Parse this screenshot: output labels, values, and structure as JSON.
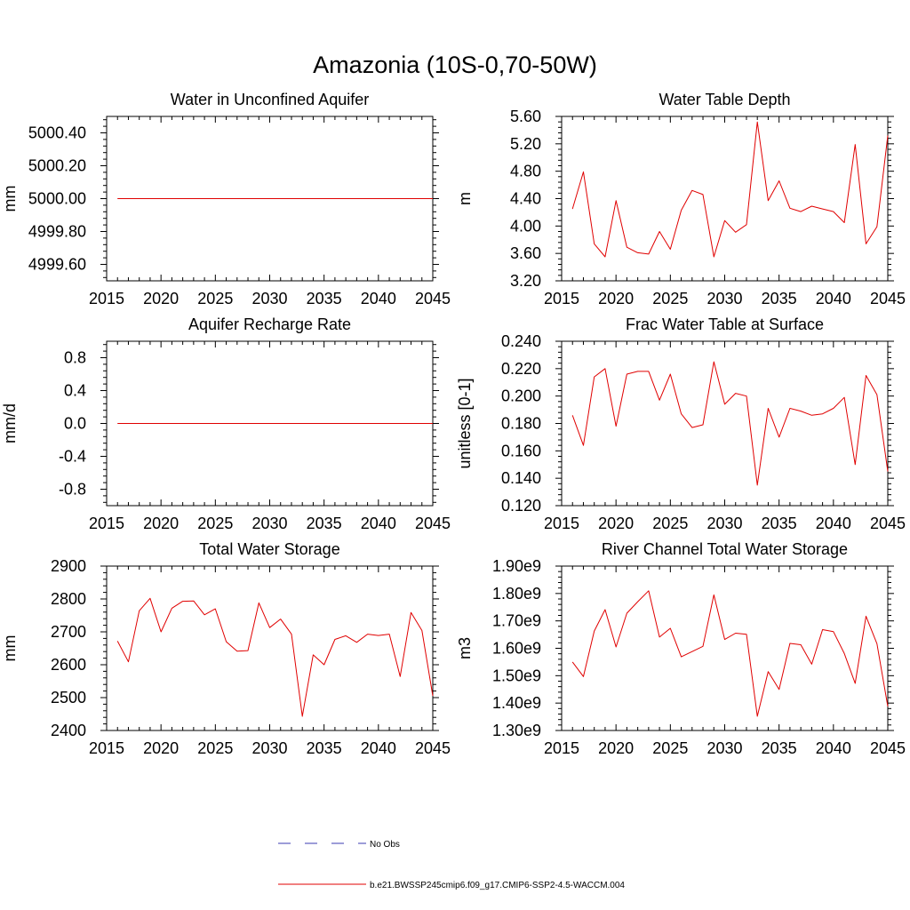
{
  "figure": {
    "title": "Amazonia (10S-0,70-50W)"
  },
  "legend": {
    "items": [
      {
        "label": "No Obs",
        "color": "#3b3bb0",
        "style": "dashed"
      },
      {
        "label": "b.e21.BWSSP245cmip6.f09_g17.CMIP6-SSP2-4.5-WACCM.004",
        "color": "#e00000",
        "style": "solid"
      }
    ]
  },
  "chart_data": [
    {
      "type": "line",
      "title": "Water in Unconfined Aquifer",
      "ylabel": "mm",
      "xlim": [
        2015,
        2045
      ],
      "ylim": [
        4999.5,
        5000.5
      ],
      "x_ticks": [
        2015,
        2020,
        2025,
        2030,
        2035,
        2040,
        2045
      ],
      "y_ticks": [
        4999.6,
        4999.8,
        5000.0,
        5000.2,
        5000.4
      ],
      "y_tick_labels": [
        "4999.60",
        "4999.80",
        "5000.00",
        "5000.20",
        "5000.40"
      ],
      "x": [
        2016,
        2017,
        2018,
        2019,
        2020,
        2021,
        2022,
        2023,
        2024,
        2025,
        2026,
        2027,
        2028,
        2029,
        2030,
        2031,
        2032,
        2033,
        2034,
        2035,
        2036,
        2037,
        2038,
        2039,
        2040,
        2041,
        2042,
        2043,
        2044,
        2045
      ],
      "series": [
        {
          "values": [
            5000,
            5000,
            5000,
            5000,
            5000,
            5000,
            5000,
            5000,
            5000,
            5000,
            5000,
            5000,
            5000,
            5000,
            5000,
            5000,
            5000,
            5000,
            5000,
            5000,
            5000,
            5000,
            5000,
            5000,
            5000,
            5000,
            5000,
            5000,
            5000,
            5000
          ],
          "color": "#e00000"
        }
      ]
    },
    {
      "type": "line",
      "title": "Water Table Depth",
      "ylabel": "m",
      "xlim": [
        2015,
        2045
      ],
      "ylim": [
        3.2,
        5.6
      ],
      "x_ticks": [
        2015,
        2020,
        2025,
        2030,
        2035,
        2040,
        2045
      ],
      "y_ticks": [
        3.2,
        3.6,
        4.0,
        4.4,
        4.8,
        5.2,
        5.6
      ],
      "y_tick_labels": [
        "3.20",
        "3.60",
        "4.00",
        "4.40",
        "4.80",
        "5.20",
        "5.60"
      ],
      "x": [
        2016,
        2017,
        2018,
        2019,
        2020,
        2021,
        2022,
        2023,
        2024,
        2025,
        2026,
        2027,
        2028,
        2029,
        2030,
        2031,
        2032,
        2033,
        2034,
        2035,
        2036,
        2037,
        2038,
        2039,
        2040,
        2041,
        2042,
        2043,
        2044,
        2045
      ],
      "series": [
        {
          "values": [
            4.25,
            4.79,
            3.74,
            3.55,
            4.37,
            3.69,
            3.61,
            3.59,
            3.92,
            3.66,
            4.23,
            4.52,
            4.46,
            3.55,
            4.08,
            3.91,
            4.02,
            5.52,
            4.37,
            4.66,
            4.26,
            4.21,
            4.29,
            4.25,
            4.21,
            4.05,
            5.19,
            3.74,
            3.99,
            5.32
          ],
          "color": "#e00000"
        }
      ]
    },
    {
      "type": "line",
      "title": "Aquifer Recharge Rate",
      "ylabel": "mm/d",
      "xlim": [
        2015,
        2045
      ],
      "ylim": [
        -1.0,
        1.0
      ],
      "x_ticks": [
        2015,
        2020,
        2025,
        2030,
        2035,
        2040,
        2045
      ],
      "y_ticks": [
        -0.8,
        -0.4,
        0.0,
        0.4,
        0.8
      ],
      "y_tick_labels": [
        "-0.8",
        "-0.4",
        "0.0",
        "0.4",
        "0.8"
      ],
      "x": [
        2016,
        2017,
        2018,
        2019,
        2020,
        2021,
        2022,
        2023,
        2024,
        2025,
        2026,
        2027,
        2028,
        2029,
        2030,
        2031,
        2032,
        2033,
        2034,
        2035,
        2036,
        2037,
        2038,
        2039,
        2040,
        2041,
        2042,
        2043,
        2044,
        2045
      ],
      "series": [
        {
          "values": [
            0,
            0,
            0,
            0,
            0,
            0,
            0,
            0,
            0,
            0,
            0,
            0,
            0,
            0,
            0,
            0,
            0,
            0,
            0,
            0,
            0,
            0,
            0,
            0,
            0,
            0,
            0,
            0,
            0,
            0
          ],
          "color": "#e00000"
        }
      ]
    },
    {
      "type": "line",
      "title": "Frac Water Table at Surface",
      "ylabel": "unitless [0-1]",
      "xlim": [
        2015,
        2045
      ],
      "ylim": [
        0.12,
        0.24
      ],
      "x_ticks": [
        2015,
        2020,
        2025,
        2030,
        2035,
        2040,
        2045
      ],
      "y_ticks": [
        0.12,
        0.14,
        0.16,
        0.18,
        0.2,
        0.22,
        0.24
      ],
      "y_tick_labels": [
        "0.120",
        "0.140",
        "0.160",
        "0.180",
        "0.200",
        "0.220",
        "0.240"
      ],
      "x": [
        2016,
        2017,
        2018,
        2019,
        2020,
        2021,
        2022,
        2023,
        2024,
        2025,
        2026,
        2027,
        2028,
        2029,
        2030,
        2031,
        2032,
        2033,
        2034,
        2035,
        2036,
        2037,
        2038,
        2039,
        2040,
        2041,
        2042,
        2043,
        2044,
        2045
      ],
      "series": [
        {
          "values": [
            0.186,
            0.164,
            0.214,
            0.22,
            0.178,
            0.216,
            0.218,
            0.218,
            0.197,
            0.216,
            0.187,
            0.177,
            0.179,
            0.225,
            0.194,
            0.202,
            0.2,
            0.135,
            0.191,
            0.17,
            0.191,
            0.189,
            0.186,
            0.187,
            0.191,
            0.199,
            0.15,
            0.215,
            0.201,
            0.145
          ],
          "color": "#e00000"
        }
      ]
    },
    {
      "type": "line",
      "title": "Total Water Storage",
      "ylabel": "mm",
      "xlim": [
        2015,
        2045
      ],
      "ylim": [
        2400,
        2900
      ],
      "x_ticks": [
        2015,
        2020,
        2025,
        2030,
        2035,
        2040,
        2045
      ],
      "y_ticks": [
        2400,
        2500,
        2600,
        2700,
        2800,
        2900
      ],
      "y_tick_labels": [
        "2400",
        "2500",
        "2600",
        "2700",
        "2800",
        "2900"
      ],
      "x": [
        2016,
        2017,
        2018,
        2019,
        2020,
        2021,
        2022,
        2023,
        2024,
        2025,
        2026,
        2027,
        2028,
        2029,
        2030,
        2031,
        2032,
        2033,
        2034,
        2035,
        2036,
        2037,
        2038,
        2039,
        2040,
        2041,
        2042,
        2043,
        2044,
        2045
      ],
      "series": [
        {
          "values": [
            2672,
            2609,
            2764,
            2802,
            2700,
            2772,
            2793,
            2794,
            2752,
            2770,
            2670,
            2641,
            2643,
            2788,
            2713,
            2739,
            2693,
            2443,
            2630,
            2600,
            2677,
            2688,
            2668,
            2693,
            2689,
            2693,
            2564,
            2759,
            2704,
            2505
          ],
          "color": "#e00000"
        }
      ]
    },
    {
      "type": "line",
      "title": "River Channel Total Water Storage",
      "ylabel": "m3",
      "xlim": [
        2015,
        2045
      ],
      "ylim": [
        1300000000.0,
        1900000000.0
      ],
      "x_ticks": [
        2015,
        2020,
        2025,
        2030,
        2035,
        2040,
        2045
      ],
      "y_ticks": [
        1300000000.0,
        1400000000.0,
        1500000000.0,
        1600000000.0,
        1700000000.0,
        1800000000.0,
        1900000000.0
      ],
      "y_tick_labels": [
        "1.30e9",
        "1.40e9",
        "1.50e9",
        "1.60e9",
        "1.70e9",
        "1.80e9",
        "1.90e9"
      ],
      "x": [
        2016,
        2017,
        2018,
        2019,
        2020,
        2021,
        2022,
        2023,
        2024,
        2025,
        2026,
        2027,
        2028,
        2029,
        2030,
        2031,
        2032,
        2033,
        2034,
        2035,
        2036,
        2037,
        2038,
        2039,
        2040,
        2041,
        2042,
        2043,
        2044,
        2045
      ],
      "series": [
        {
          "values": [
            1550000000.0,
            1497000000.0,
            1663000000.0,
            1741000000.0,
            1605000000.0,
            1728000000.0,
            1770000000.0,
            1810000000.0,
            1641000000.0,
            1673000000.0,
            1569000000.0,
            1588000000.0,
            1607000000.0,
            1795000000.0,
            1632000000.0,
            1655000000.0,
            1651000000.0,
            1352000000.0,
            1515000000.0,
            1450000000.0,
            1618000000.0,
            1613000000.0,
            1542000000.0,
            1668000000.0,
            1661000000.0,
            1581000000.0,
            1472000000.0,
            1717000000.0,
            1617000000.0,
            1388000000.0
          ],
          "color": "#e00000"
        }
      ]
    }
  ]
}
